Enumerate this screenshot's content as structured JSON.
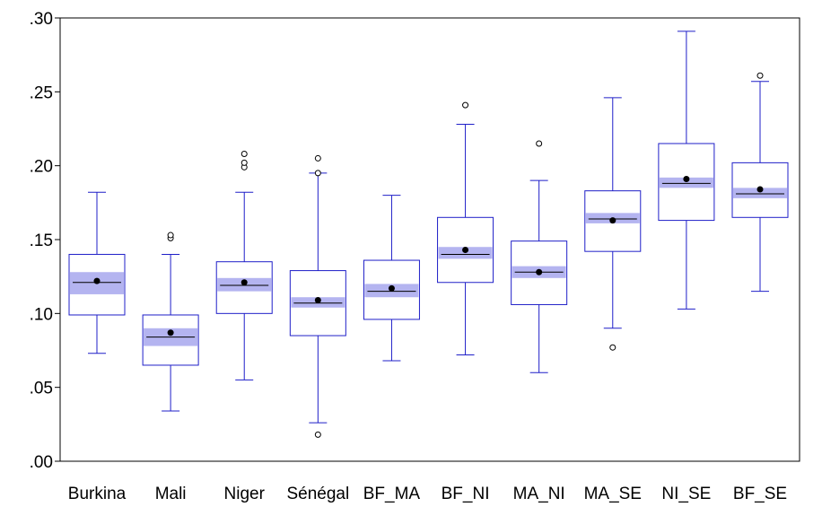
{
  "chart_data": {
    "type": "box",
    "title": "",
    "xlabel": "",
    "ylabel": "",
    "ylim": [
      0.0,
      0.3
    ],
    "yticks": [
      {
        "value": 0.0,
        "label": ".00"
      },
      {
        "value": 0.05,
        "label": ".05"
      },
      {
        "value": 0.1,
        "label": ".10"
      },
      {
        "value": 0.15,
        "label": ".15"
      },
      {
        "value": 0.2,
        "label": ".20"
      },
      {
        "value": 0.25,
        "label": ".25"
      },
      {
        "value": 0.3,
        "label": ".30"
      }
    ],
    "grid": false,
    "legend": "none",
    "colors": {
      "box_line": "#1f1fc8",
      "ci_band": "#b4b4f0",
      "median": "#000000",
      "mean_dot": "#000000",
      "outlier": "#000000",
      "axis": "#000000"
    },
    "categories": [
      "Burkina",
      "Mali",
      "Niger",
      "Sénégal",
      "BF_MA",
      "BF_NI",
      "MA_NI",
      "MA_SE",
      "NI_SE",
      "BF_SE"
    ],
    "boxes": [
      {
        "name": "Burkina",
        "whisker_low": 0.073,
        "q1": 0.099,
        "median": 0.121,
        "q3": 0.14,
        "whisker_high": 0.182,
        "mean": 0.122,
        "ci": [
          0.113,
          0.128
        ],
        "outliers": []
      },
      {
        "name": "Mali",
        "whisker_low": 0.034,
        "q1": 0.065,
        "median": 0.084,
        "q3": 0.099,
        "whisker_high": 0.14,
        "mean": 0.087,
        "ci": [
          0.078,
          0.09
        ],
        "outliers": [
          0.151,
          0.153
        ]
      },
      {
        "name": "Niger",
        "whisker_low": 0.055,
        "q1": 0.1,
        "median": 0.119,
        "q3": 0.135,
        "whisker_high": 0.182,
        "mean": 0.121,
        "ci": [
          0.115,
          0.124
        ],
        "outliers": [
          0.199,
          0.202,
          0.208
        ]
      },
      {
        "name": "Sénégal",
        "whisker_low": 0.026,
        "q1": 0.085,
        "median": 0.107,
        "q3": 0.129,
        "whisker_high": 0.195,
        "mean": 0.109,
        "ci": [
          0.104,
          0.111
        ],
        "outliers": [
          0.018,
          0.195,
          0.205
        ]
      },
      {
        "name": "BF_MA",
        "whisker_low": 0.068,
        "q1": 0.096,
        "median": 0.115,
        "q3": 0.136,
        "whisker_high": 0.18,
        "mean": 0.117,
        "ci": [
          0.111,
          0.12
        ],
        "outliers": []
      },
      {
        "name": "BF_NI",
        "whisker_low": 0.072,
        "q1": 0.121,
        "median": 0.14,
        "q3": 0.165,
        "whisker_high": 0.228,
        "mean": 0.143,
        "ci": [
          0.137,
          0.145
        ],
        "outliers": [
          0.241
        ]
      },
      {
        "name": "MA_NI",
        "whisker_low": 0.06,
        "q1": 0.106,
        "median": 0.128,
        "q3": 0.149,
        "whisker_high": 0.19,
        "mean": 0.128,
        "ci": [
          0.124,
          0.132
        ],
        "outliers": [
          0.215
        ]
      },
      {
        "name": "MA_SE",
        "whisker_low": 0.09,
        "q1": 0.142,
        "median": 0.164,
        "q3": 0.183,
        "whisker_high": 0.246,
        "mean": 0.163,
        "ci": [
          0.161,
          0.168
        ],
        "outliers": [
          0.077
        ]
      },
      {
        "name": "NI_SE",
        "whisker_low": 0.103,
        "q1": 0.163,
        "median": 0.188,
        "q3": 0.215,
        "whisker_high": 0.291,
        "mean": 0.191,
        "ci": [
          0.185,
          0.192
        ],
        "outliers": []
      },
      {
        "name": "BF_SE",
        "whisker_low": 0.115,
        "q1": 0.165,
        "median": 0.181,
        "q3": 0.202,
        "whisker_high": 0.257,
        "mean": 0.184,
        "ci": [
          0.178,
          0.185
        ],
        "outliers": [
          0.261
        ]
      }
    ]
  }
}
